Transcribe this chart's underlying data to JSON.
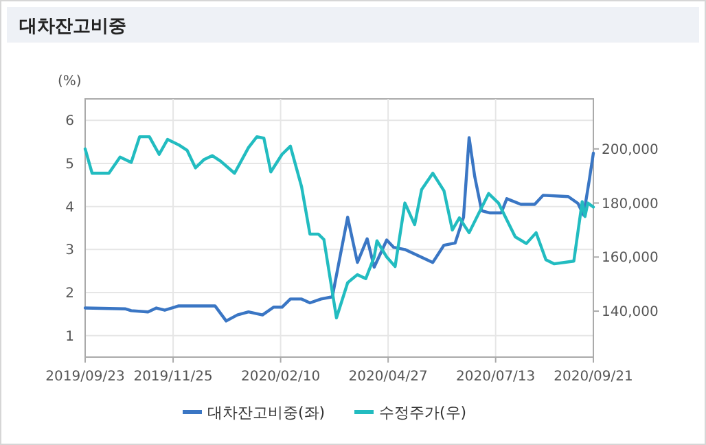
{
  "chart_data": {
    "type": "line",
    "title": "대차잔고비중",
    "ylabel": "(%)",
    "xlim": [
      "2019-09-23",
      "2020-09-21"
    ],
    "xticks": [
      {
        "value": "2019-09-23",
        "label": "2019/09/23"
      },
      {
        "value": "2019-11-25",
        "label": "2019/11/25"
      },
      {
        "value": "2020-02-10",
        "label": "2020/02/10"
      },
      {
        "value": "2020-04-27",
        "label": "2020/04/27"
      },
      {
        "value": "2020-07-13",
        "label": "2020/07/13"
      },
      {
        "value": "2020-09-21",
        "label": "2020/09/21"
      }
    ],
    "ylim": [
      0.5,
      6.5
    ],
    "yticks": [
      1,
      2,
      3,
      4,
      5,
      6
    ],
    "y2lim": [
      123000,
      218500
    ],
    "y2ticks": [
      {
        "value": 140000,
        "label": "140,000"
      },
      {
        "value": 160000,
        "label": "160,000"
      },
      {
        "value": 180000,
        "label": "180,000"
      },
      {
        "value": 200000,
        "label": "200,000"
      }
    ],
    "grid": true,
    "legend": "bottom",
    "marker": "none",
    "line_style": "solid",
    "series": [
      {
        "name": "대차잔고비중(좌)",
        "color": "#3a76c4",
        "x": [
          "2019-09-23",
          "2019-10-22",
          "2019-10-26",
          "2019-11-07",
          "2019-11-13",
          "2019-11-19",
          "2019-11-29",
          "2019-12-25",
          "2020-01-02",
          "2020-01-10",
          "2020-01-18",
          "2020-01-28",
          "2020-02-05",
          "2020-02-11",
          "2020-02-17",
          "2020-02-25",
          "2020-03-02",
          "2020-03-10",
          "2020-03-18",
          "2020-03-29",
          "2020-04-05",
          "2020-04-12",
          "2020-04-17",
          "2020-04-26",
          "2020-05-01",
          "2020-05-09",
          "2020-05-29",
          "2020-06-06",
          "2020-06-14",
          "2020-06-20",
          "2020-06-24",
          "2020-06-28",
          "2020-07-03",
          "2020-07-09",
          "2020-07-17",
          "2020-07-21",
          "2020-07-31",
          "2020-08-10",
          "2020-08-16",
          "2020-09-03",
          "2020-09-10",
          "2020-09-14",
          "2020-09-18",
          "2020-09-21"
        ],
        "values": [
          1.64,
          1.62,
          1.58,
          1.55,
          1.64,
          1.59,
          1.69,
          1.69,
          1.34,
          1.48,
          1.55,
          1.48,
          1.66,
          1.66,
          1.85,
          1.85,
          1.76,
          1.85,
          1.9,
          3.75,
          2.7,
          3.25,
          2.59,
          3.22,
          3.05,
          3.0,
          2.7,
          3.1,
          3.15,
          3.75,
          5.6,
          4.7,
          3.9,
          3.85,
          3.85,
          4.18,
          4.05,
          4.05,
          4.26,
          4.23,
          4.07,
          3.8,
          4.6,
          5.24
        ]
      },
      {
        "name": "수정주가(우)",
        "color": "#22bcc0",
        "axis": "y2",
        "x": [
          "2019-09-23",
          "2019-09-28",
          "2019-10-10",
          "2019-10-18",
          "2019-10-26",
          "2019-11-01",
          "2019-11-08",
          "2019-11-15",
          "2019-11-21",
          "2019-11-29",
          "2019-12-05",
          "2019-12-11",
          "2019-12-17",
          "2019-12-23",
          "2019-12-29",
          "2020-01-08",
          "2020-01-18",
          "2020-01-24",
          "2020-01-29",
          "2020-02-03",
          "2020-02-11",
          "2020-02-17",
          "2020-02-25",
          "2020-03-02",
          "2020-03-08",
          "2020-03-12",
          "2020-03-21",
          "2020-03-29",
          "2020-04-05",
          "2020-04-11",
          "2020-04-17",
          "2020-04-19",
          "2020-04-26",
          "2020-05-02",
          "2020-05-09",
          "2020-05-16",
          "2020-05-21",
          "2020-05-29",
          "2020-06-06",
          "2020-06-12",
          "2020-06-17",
          "2020-06-24",
          "2020-07-08",
          "2020-07-15",
          "2020-07-27",
          "2020-08-04",
          "2020-08-11",
          "2020-08-18",
          "2020-08-24",
          "2020-09-07",
          "2020-09-13",
          "2020-09-15",
          "2020-09-17",
          "2020-09-21"
        ],
        "values": [
          200000,
          191000,
          191000,
          197000,
          195000,
          204500,
          204500,
          198000,
          203500,
          201500,
          199500,
          193000,
          196000,
          197500,
          195500,
          191000,
          200500,
          204500,
          204000,
          191500,
          198000,
          201000,
          186000,
          168500,
          168500,
          166500,
          137500,
          150500,
          153500,
          152000,
          160000,
          166000,
          160000,
          156500,
          180000,
          172000,
          185000,
          191000,
          184500,
          170000,
          174500,
          169000,
          183500,
          180000,
          167500,
          165000,
          169000,
          159000,
          157500,
          158500,
          180500,
          175000,
          180000,
          178500
        ]
      }
    ]
  }
}
